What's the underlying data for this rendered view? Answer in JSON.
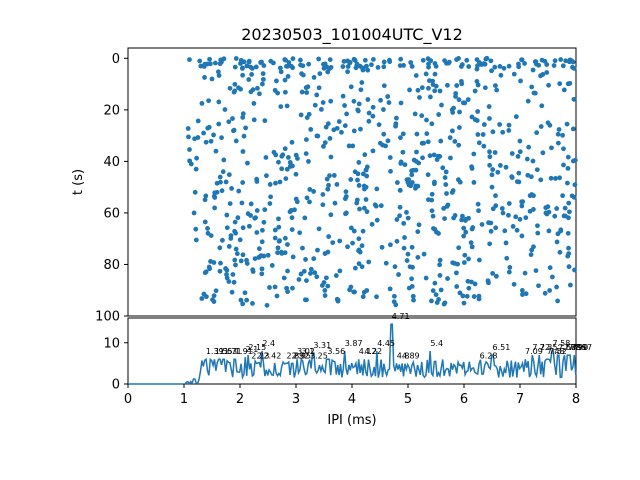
{
  "chart_data": [
    {
      "type": "scatter",
      "title": "20230503_101004UTC_V12",
      "xlabel": "",
      "ylabel": "t (s)",
      "xlim": [
        0,
        8
      ],
      "ylim": [
        100,
        -4
      ],
      "y_inverted": true,
      "yticks": [
        "0",
        "20",
        "40",
        "60",
        "80",
        "100"
      ],
      "color": "#1f77b4",
      "x_range_of_points": [
        1.05,
        8.0
      ],
      "t_range_of_points": [
        0,
        96
      ],
      "approx_point_count": 900,
      "points_note_sample": [
        {
          "x": 1.08,
          "t": 30.5
        },
        {
          "x": 1.1,
          "t": 39.8
        },
        {
          "x": 1.13,
          "t": 41.0
        },
        {
          "x": 1.2,
          "t": 52.0
        },
        {
          "x": 1.18,
          "t": 60.0
        },
        {
          "x": 1.22,
          "t": 70.5
        },
        {
          "x": 1.3,
          "t": 3.0
        },
        {
          "x": 1.32,
          "t": 17.5
        },
        {
          "x": 1.35,
          "t": 29.0
        },
        {
          "x": 1.38,
          "t": 63.5
        },
        {
          "x": 1.42,
          "t": 66.0
        },
        {
          "x": 1.45,
          "t": 81.0
        },
        {
          "x": 1.4,
          "t": 92.5
        },
        {
          "x": 1.5,
          "t": 8.0
        },
        {
          "x": 1.55,
          "t": 54.0
        },
        {
          "x": 1.62,
          "t": 25.5
        },
        {
          "x": 1.7,
          "t": 44.0
        },
        {
          "x": 1.85,
          "t": 50.5
        },
        {
          "x": 2.1,
          "t": 27.0
        },
        {
          "x": 2.2,
          "t": 56.5
        },
        {
          "x": 2.4,
          "t": 10.0
        },
        {
          "x": 2.7,
          "t": 71.0
        },
        {
          "x": 3.0,
          "t": 45.0
        },
        {
          "x": 3.2,
          "t": 23.0
        },
        {
          "x": 3.5,
          "t": 87.0
        },
        {
          "x": 3.9,
          "t": 60.0
        },
        {
          "x": 4.2,
          "t": 92.5
        },
        {
          "x": 4.6,
          "t": 34.0
        },
        {
          "x": 5.0,
          "t": 76.0
        },
        {
          "x": 5.4,
          "t": 15.0
        },
        {
          "x": 6.0,
          "t": 95.0
        },
        {
          "x": 6.5,
          "t": 50.0
        },
        {
          "x": 7.0,
          "t": 62.5
        },
        {
          "x": 7.5,
          "t": 25.0
        },
        {
          "x": 7.9,
          "t": 88.0
        }
      ]
    },
    {
      "type": "line",
      "title": "",
      "xlabel": "IPI (ms)",
      "ylabel": "",
      "xlim": [
        0,
        8
      ],
      "ylim": [
        0,
        16
      ],
      "xticks": [
        "0",
        "1",
        "2",
        "3",
        "4",
        "5",
        "6",
        "7",
        "8"
      ],
      "yticks": [
        "0",
        "10"
      ],
      "color": "#1f77b4",
      "peaks": [
        {
          "x": 1.39,
          "y": 7.0,
          "label": "1.39"
        },
        {
          "x": 1.55,
          "y": 7.0,
          "label": "1.55"
        },
        {
          "x": 1.63,
          "y": 7.0,
          "label": "1.63"
        },
        {
          "x": 1.71,
          "y": 7.0,
          "label": "1.71"
        },
        {
          "x": 1.91,
          "y": 7.0,
          "label": "1.91"
        },
        {
          "x": 2.1,
          "y": 7.5,
          "label": "2.1"
        },
        {
          "x": 2.15,
          "y": 8.0,
          "label": "2.15"
        },
        {
          "x": 2.2,
          "y": 6.0,
          "label": "2.2"
        },
        {
          "x": 2.3,
          "y": 6.0,
          "label": "2.3"
        },
        {
          "x": 2.4,
          "y": 9.0,
          "label": "2.4"
        },
        {
          "x": 2.42,
          "y": 6.0,
          "label": "2.42"
        },
        {
          "x": 2.83,
          "y": 6.0,
          "label": "2.83"
        },
        {
          "x": 2.92,
          "y": 6.0,
          "label": "2.92"
        },
        {
          "x": 2.95,
          "y": 6.0,
          "label": "2.95"
        },
        {
          "x": 3.02,
          "y": 7.0,
          "label": "3.02"
        },
        {
          "x": 3.1,
          "y": 7.0,
          "label": "3.1"
        },
        {
          "x": 3.25,
          "y": 6.0,
          "label": "3.25"
        },
        {
          "x": 3.31,
          "y": 8.5,
          "label": "3.31"
        },
        {
          "x": 3.56,
          "y": 7.0,
          "label": "3.56"
        },
        {
          "x": 3.87,
          "y": 9.0,
          "label": "3.87"
        },
        {
          "x": 4.12,
          "y": 7.0,
          "label": "4.12"
        },
        {
          "x": 4.22,
          "y": 7.0,
          "label": "4.22"
        },
        {
          "x": 4.45,
          "y": 9.0,
          "label": "4.45"
        },
        {
          "x": 4.71,
          "y": 15.5,
          "label": "4.71"
        },
        {
          "x": 4.8,
          "y": 6.0,
          "label": "4.8"
        },
        {
          "x": 4.89,
          "y": 6.0,
          "label": "4.89"
        },
        {
          "x": 5.4,
          "y": 9.0,
          "label": "5.4"
        },
        {
          "x": 6.28,
          "y": 6.0,
          "label": "6.28"
        },
        {
          "x": 6.51,
          "y": 8.0,
          "label": "6.51"
        },
        {
          "x": 7.09,
          "y": 7.0,
          "label": "7.09"
        },
        {
          "x": 7.22,
          "y": 8.0,
          "label": "7.22"
        },
        {
          "x": 7.35,
          "y": 8.0,
          "label": "7.35"
        },
        {
          "x": 7.48,
          "y": 7.0,
          "label": "7.48"
        },
        {
          "x": 7.52,
          "y": 7.0,
          "label": "7.52"
        },
        {
          "x": 7.58,
          "y": 9.0,
          "label": "7.58"
        },
        {
          "x": 7.68,
          "y": 8.0,
          "label": "7.68"
        },
        {
          "x": 7.79,
          "y": 8.0,
          "label": "7.79"
        },
        {
          "x": 7.86,
          "y": 8.0,
          "label": "7.86"
        },
        {
          "x": 7.9,
          "y": 8.0,
          "label": "7.90"
        },
        {
          "x": 7.97,
          "y": 8.0,
          "label": "7.97"
        }
      ],
      "baseline_note_sample": [
        {
          "x": 0,
          "y": 0
        },
        {
          "x": 1.0,
          "y": 0
        },
        {
          "x": 1.1,
          "y": 1.0
        },
        {
          "x": 1.2,
          "y": 3.0
        },
        {
          "x": 1.3,
          "y": 5.0
        },
        {
          "x": 2.0,
          "y": 4.0
        },
        {
          "x": 3.0,
          "y": 3.5
        },
        {
          "x": 4.0,
          "y": 4.0
        },
        {
          "x": 5.0,
          "y": 3.5
        },
        {
          "x": 6.0,
          "y": 3.0
        },
        {
          "x": 7.0,
          "y": 3.5
        },
        {
          "x": 8.0,
          "y": 4.0
        }
      ]
    }
  ]
}
